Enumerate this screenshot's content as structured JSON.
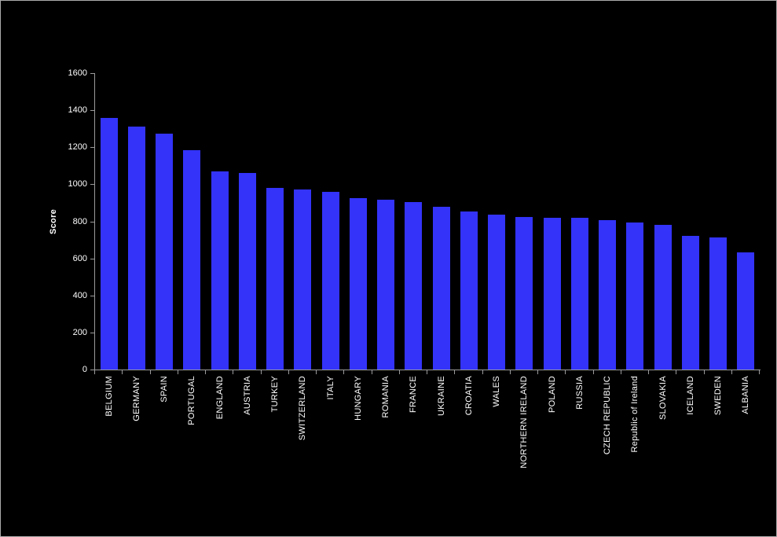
{
  "chart_data": {
    "type": "bar",
    "title": "",
    "xlabel": "",
    "ylabel": "Score",
    "ylim": [
      0,
      1600
    ],
    "ytick_step": 200,
    "ytick_labels": [
      "0",
      "200",
      "400",
      "600",
      "800",
      "1000",
      "1200",
      "1400",
      "1600"
    ],
    "grid": false,
    "legend_position": "none",
    "categories": [
      "BELGIUM",
      "GERMANY",
      "SPAIN",
      "PORTUGAL",
      "ENGLAND",
      "AUSTRIA",
      "TURKEY",
      "SWITZERLAND",
      "ITALY",
      "HUNGARY",
      "ROMANIA",
      "FRANCE",
      "UKRAINE",
      "CROATIA",
      "WALES",
      "NORTHERN IRELAND",
      "POLAND",
      "RUSSIA",
      "CZECH REPUBLIC",
      "Republic of Ireland",
      "SLOVAKIA",
      "ICELAND",
      "SWEDEN",
      "ALBANIA"
    ],
    "values": [
      1360,
      1310,
      1275,
      1185,
      1070,
      1062,
      982,
      974,
      958,
      926,
      918,
      904,
      879,
      852,
      838,
      823,
      820,
      818,
      806,
      792,
      782,
      720,
      713,
      631
    ],
    "colors": {
      "bar": "#3333fa",
      "background": "#000000",
      "axis": "#9b9b9b",
      "text": "#ffffff"
    }
  }
}
